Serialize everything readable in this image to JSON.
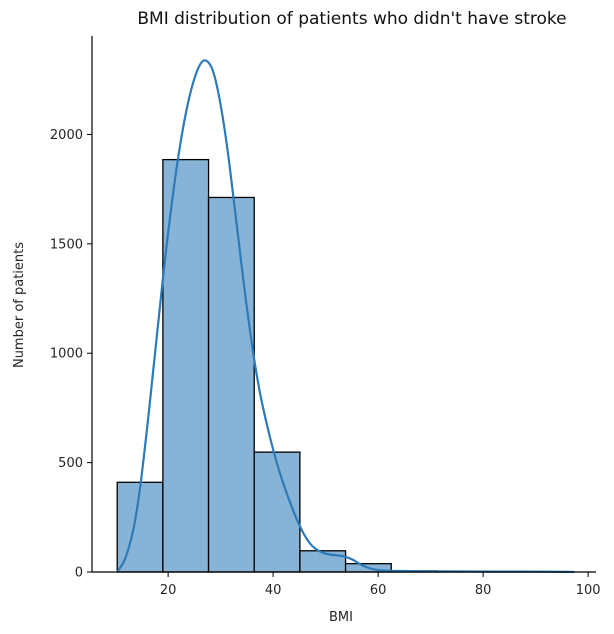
{
  "chart_data": {
    "type": "bar",
    "title": "BMI distribution of patients who didn't have stroke",
    "xlabel": "BMI",
    "ylabel": "Number of patients",
    "xlim": [
      5.5,
      101.5
    ],
    "ylim": [
      0,
      2450
    ],
    "xticks": [
      20,
      40,
      60,
      80,
      100
    ],
    "yticks": [
      0,
      500,
      1000,
      1500,
      2000
    ],
    "bin_edges": [
      10.3,
      19.0,
      27.7,
      36.4,
      45.1,
      53.8,
      62.5,
      71.2,
      79.9,
      88.6,
      97.3
    ],
    "values": [
      410,
      1885,
      1712,
      548,
      97,
      38,
      5,
      3,
      2,
      1
    ],
    "kde": {
      "x": [
        10.3,
        12,
        14,
        16,
        18,
        20,
        22,
        24,
        26,
        27.5,
        29,
        31,
        33,
        35,
        37,
        39,
        41,
        43,
        45,
        47,
        49,
        51,
        53,
        55,
        57,
        59,
        61,
        63,
        66,
        70,
        75,
        80,
        85,
        90,
        95,
        97.3
      ],
      "y": [
        0,
        60,
        250,
        650,
        1120,
        1560,
        1920,
        2180,
        2330,
        2345,
        2270,
        2000,
        1600,
        1200,
        870,
        650,
        470,
        330,
        210,
        125,
        90,
        78,
        75,
        60,
        28,
        12,
        6,
        5,
        4,
        3,
        3,
        2,
        2,
        2,
        1,
        0
      ]
    },
    "colors": {
      "bar_fill": "#87b4d6",
      "bar_edge": "#000000",
      "kde_line": "#2d7ab9",
      "axis": "#000000"
    },
    "grid": false
  }
}
